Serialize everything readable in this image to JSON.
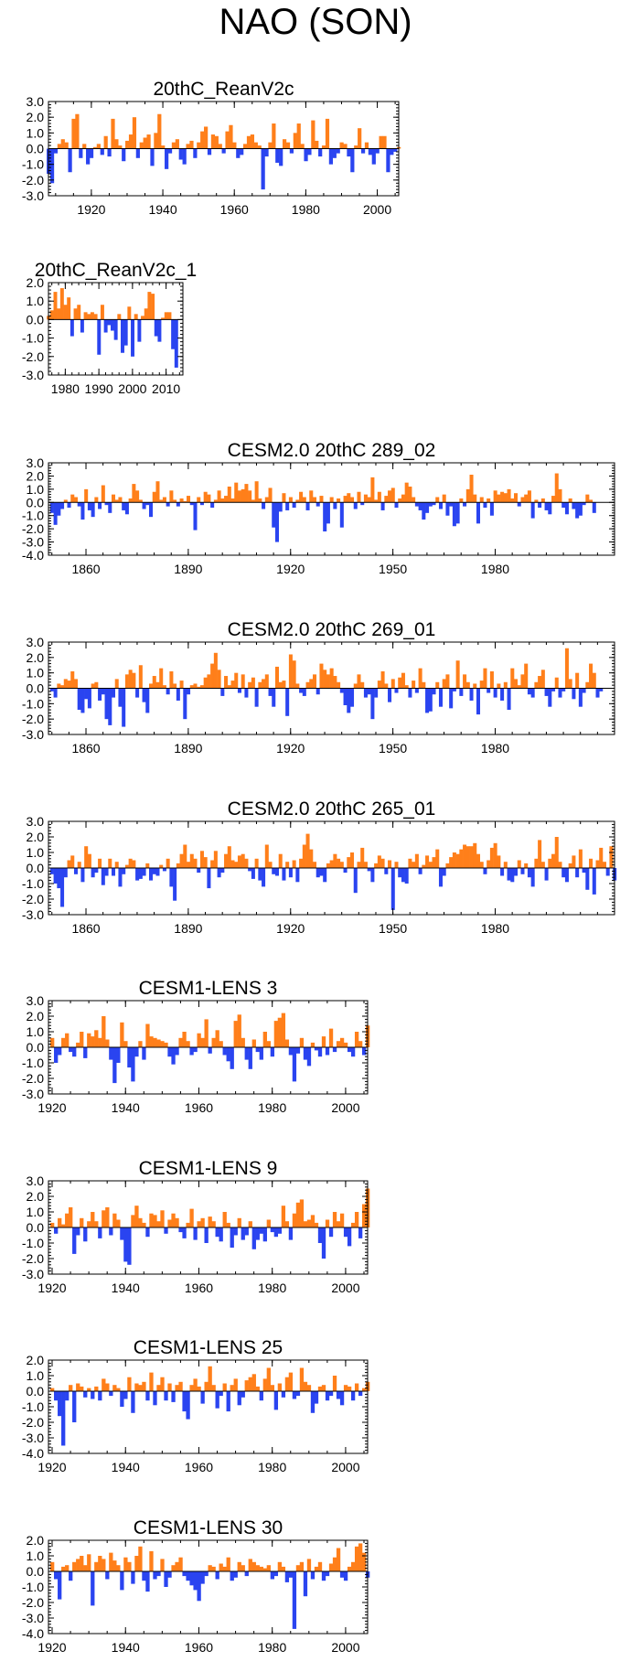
{
  "page_title": "NAO (SON)",
  "colors": {
    "positive": "#ff7f1a",
    "negative": "#2a44f0",
    "axis": "#000000"
  },
  "chart_data": [
    {
      "type": "area",
      "title": "20thC_ReanV2c",
      "xlim": [
        1908,
        2006
      ],
      "ylim": [
        -3,
        3
      ],
      "yticks": [
        3,
        2,
        1,
        0,
        -1,
        -2,
        -3
      ],
      "ytick_labels": [
        "3.0",
        "2.0",
        "1.0",
        "0.0",
        "-1.0",
        "-2.0",
        "-3.0"
      ],
      "xticks": [
        1920,
        1940,
        1960,
        1980,
        2000
      ],
      "xtick_labels": [
        "1920",
        "1940",
        "1960",
        "1980",
        "2000"
      ],
      "x_start": 1908,
      "x_step": 1,
      "values": [
        -1.6,
        -2.2,
        -0.3,
        0.3,
        0.6,
        0.4,
        -1.5,
        1.9,
        2.2,
        -0.6,
        0.3,
        -1.0,
        -0.6,
        0.1,
        0.3,
        -0.4,
        0.8,
        -0.5,
        1.9,
        0.6,
        0.2,
        -0.8,
        0.5,
        0.9,
        2.0,
        -0.6,
        0.4,
        0.7,
        0.9,
        -1.1,
        1.0,
        2.2,
        0.2,
        -1.3,
        -0.3,
        0.4,
        0.6,
        -0.7,
        -1.0,
        0.3,
        0.5,
        -0.6,
        0.4,
        1.1,
        1.4,
        -0.4,
        0.9,
        0.8,
        0.3,
        -0.3,
        1.1,
        1.5,
        0.4,
        -0.6,
        -0.4,
        0.3,
        0.8,
        0.9,
        0.4,
        0.2,
        -2.6,
        -0.5,
        0.4,
        1.6,
        -0.9,
        -1.1,
        0.6,
        0.4,
        -0.3,
        1.0,
        1.6,
        0.3,
        -0.8,
        -0.4,
        1.8,
        0.5,
        -0.5,
        0.2,
        1.9,
        -1.0,
        -0.6,
        -0.3,
        0.4,
        0.3,
        -0.5,
        -1.5,
        0.2,
        1.3,
        -0.3,
        0.4,
        -0.4,
        -1.0,
        -0.3,
        0.8,
        0.8,
        -1.5,
        -0.4,
        -0.2,
        0.1
      ]
    },
    {
      "type": "area",
      "title": "20thC_ReanV2c_1",
      "xlim": [
        1975,
        2015
      ],
      "ylim": [
        -3,
        2
      ],
      "yticks": [
        2,
        1,
        0,
        -1,
        -2,
        -3
      ],
      "ytick_labels": [
        "2.0",
        "1.0",
        "0.0",
        "-1.0",
        "-2.0",
        "-3.0"
      ],
      "xticks": [
        1980,
        1990,
        2000,
        2010
      ],
      "xtick_labels": [
        "1980",
        "1990",
        "2000",
        "2010"
      ],
      "x_start": 1975,
      "x_step": 1,
      "values": [
        0.2,
        0.5,
        1.5,
        0.6,
        1.7,
        0.8,
        1.2,
        -0.9,
        0.6,
        0.8,
        -0.7,
        0.4,
        0.3,
        0.4,
        0.3,
        -1.9,
        0.8,
        -0.7,
        -0.3,
        -0.6,
        -1.1,
        0.3,
        -1.8,
        -1.4,
        0.7,
        -2.0,
        0.3,
        -1.2,
        0.2,
        0.6,
        1.5,
        1.4,
        -0.9,
        -1.2,
        0.1,
        0.4,
        0.4,
        -1.6,
        -2.6
      ]
    },
    {
      "type": "area",
      "title": "CESM2.0 20thC 289_02",
      "xlim": [
        1849,
        2015
      ],
      "ylim": [
        -4,
        3
      ],
      "yticks": [
        3,
        2,
        1,
        0,
        -1,
        -2,
        -3,
        -4
      ],
      "ytick_labels": [
        "3.0",
        "2.0",
        "1.0",
        "0.0",
        "-1.0",
        "-2.0",
        "-3.0",
        "-4.0"
      ],
      "xticks": [
        1860,
        1890,
        1920,
        1950,
        1980
      ],
      "xtick_labels": [
        "1860",
        "1890",
        "1920",
        "1950",
        "1980"
      ],
      "x_start": 1850,
      "x_step": 1,
      "values": [
        -0.8,
        -1.7,
        -1.0,
        -0.5,
        0.2,
        -0.4,
        0.6,
        0.4,
        -0.3,
        -1.3,
        1.0,
        -0.6,
        -1.1,
        0.4,
        -0.5,
        1.3,
        -0.2,
        -0.8,
        0.6,
        0.2,
        0.4,
        -0.6,
        -0.9,
        0.3,
        1.4,
        0.9,
        0.2,
        -0.5,
        -0.2,
        -1.1,
        0.8,
        1.6,
        0.2,
        0.4,
        -0.3,
        0.9,
        0.2,
        -0.3,
        0.3,
        0.1,
        0.5,
        -0.2,
        -2.1,
        0.4,
        -0.2,
        0.8,
        0.6,
        -0.4,
        0.2,
        0.9,
        0.3,
        0.5,
        1.2,
        0.3,
        1.5,
        0.9,
        1.0,
        1.4,
        0.9,
        0.2,
        1.6,
        0.3,
        -0.5,
        0.4,
        1.1,
        -1.9,
        -3.0,
        -0.7,
        0.7,
        -0.6,
        0.4,
        -0.4,
        0.2,
        0.8,
        0.4,
        -0.6,
        0.9,
        0.4,
        -0.3,
        0.5,
        -2.2,
        -1.6,
        0.4,
        -0.5,
        0.3,
        -1.9,
        0.5,
        0.7,
        0.4,
        -0.5,
        0.8,
        -0.2,
        0.6,
        0.4,
        1.9,
        0.2,
        0.8,
        -0.6,
        0.5,
        0.9,
        1.1,
        -0.4,
        0.3,
        0.6,
        1.5,
        1.2,
        0.4,
        -0.3,
        -0.6,
        -1.3,
        -0.8,
        -0.3,
        -0.2,
        0.4,
        -0.5,
        0.6,
        -1.0,
        -0.3,
        -1.8,
        -1.6,
        0.3,
        -0.3,
        1.0,
        2.1,
        0.6,
        -1.6,
        0.4,
        -0.4,
        0.3,
        -1.0,
        0.9,
        0.6,
        0.8,
        0.7,
        1.0,
        0.3,
        0.7,
        -0.3,
        0.4,
        0.6,
        0.9,
        -1.2,
        0.2,
        -0.4,
        0.3,
        -0.6,
        -0.9,
        0.5,
        2.2,
        1.0,
        -0.4,
        -0.9,
        0.3,
        -0.5,
        -1.2,
        -1.0,
        -0.2,
        0.6,
        0.2,
        -0.8
      ]
    },
    {
      "type": "area",
      "title": "CESM2.0 20thC 269_01",
      "xlim": [
        1849,
        2015
      ],
      "ylim": [
        -3,
        3
      ],
      "yticks": [
        3,
        2,
        1,
        0,
        -1,
        -2,
        -3
      ],
      "ytick_labels": [
        "3.0",
        "2.0",
        "1.0",
        "0.0",
        "-1.0",
        "-2.0",
        "-3.0"
      ],
      "xticks": [
        1860,
        1890,
        1920,
        1950,
        1980
      ],
      "xtick_labels": [
        "1860",
        "1890",
        "1920",
        "1950",
        "1980"
      ],
      "x_start": 1850,
      "x_step": 1,
      "values": [
        -0.2,
        -0.6,
        0.3,
        0.2,
        0.6,
        0.5,
        1.1,
        0.6,
        -1.4,
        -1.6,
        -0.7,
        -1.3,
        0.3,
        0.4,
        -0.8,
        -0.4,
        -2.0,
        -2.4,
        -0.6,
        0.6,
        -1.2,
        -2.5,
        0.9,
        1.2,
        1.0,
        -0.6,
        1.5,
        -0.9,
        -1.6,
        0.3,
        0.8,
        0.4,
        1.3,
        0.2,
        -0.4,
        1.1,
        0.3,
        -0.8,
        0.5,
        -2.0,
        -0.4,
        0.2,
        0.3,
        0.1,
        0.2,
        0.7,
        0.9,
        1.6,
        2.3,
        1.2,
        -0.5,
        0.8,
        0.2,
        0.5,
        1.0,
        -0.3,
        0.9,
        -0.6,
        0.4,
        0.7,
        -1.2,
        0.4,
        0.6,
        0.9,
        -0.5,
        -1.2,
        1.4,
        0.4,
        0.5,
        -1.8,
        2.2,
        1.8,
        0.3,
        -0.3,
        -0.5,
        0.4,
        0.6,
        0.9,
        -0.4,
        1.6,
        1.2,
        0.9,
        1.3,
        0.8,
        0.4,
        -0.3,
        -1.1,
        -1.6,
        -1.2,
        0.3,
        0.9,
        0.4,
        -0.6,
        -0.4,
        -2.0,
        -0.6,
        0.5,
        1.1,
        0.3,
        -0.9,
        0.6,
        -0.3,
        0.7,
        1.0,
        0.2,
        -0.6,
        0.5,
        -0.3,
        1.3,
        0.4,
        -1.6,
        -1.5,
        -0.4,
        0.4,
        -1.2,
        0.6,
        0.9,
        -1.3,
        -0.2,
        1.8,
        -0.5,
        0.9,
        0.4,
        -0.8,
        0.3,
        -1.7,
        0.5,
        1.3,
        -0.3,
        1.1,
        -0.6,
        0.3,
        -0.8,
        0.4,
        -1.4,
        1.3,
        0.6,
        0.2,
        0.9,
        1.6,
        -0.4,
        -0.6,
        0.4,
        0.8,
        1.2,
        -0.5,
        -1.2,
        -0.2,
        0.7,
        -0.6,
        -0.2,
        2.6,
        0.6,
        -0.7,
        1.0,
        -1.2,
        -0.3,
        0.4,
        1.6,
        1.0,
        -0.6,
        -0.2
      ]
    },
    {
      "type": "area",
      "title": "CESM2.0 20thC 265_01",
      "xlim": [
        1849,
        2015
      ],
      "ylim": [
        -3,
        3
      ],
      "yticks": [
        3,
        2,
        1,
        0,
        -1,
        -2,
        -3
      ],
      "ytick_labels": [
        "3.0",
        "2.0",
        "1.0",
        "0.0",
        "-1.0",
        "-2.0",
        "-3.0"
      ],
      "xticks": [
        1860,
        1890,
        1920,
        1950,
        1980
      ],
      "xtick_labels": [
        "1860",
        "1890",
        "1920",
        "1950",
        "1980"
      ],
      "x_start": 1850,
      "x_step": 1,
      "values": [
        -0.4,
        -1.0,
        -1.3,
        -2.5,
        -0.6,
        0.5,
        0.8,
        -0.4,
        0.4,
        -0.9,
        1.4,
        0.9,
        -0.6,
        -0.3,
        0.6,
        -1.1,
        -0.5,
        0.6,
        -0.5,
        0.4,
        -1.2,
        -0.4,
        0.2,
        0.6,
        0.5,
        -0.8,
        -0.7,
        -0.5,
        0.3,
        -0.8,
        -0.4,
        -0.5,
        0.2,
        -0.2,
        0.6,
        -1.2,
        -2.1,
        0.3,
        0.9,
        1.5,
        0.4,
        0.9,
        0.6,
        -0.3,
        1.1,
        0.7,
        -1.3,
        0.5,
        1.1,
        -0.6,
        -0.3,
        0.9,
        1.4,
        0.5,
        0.4,
        0.8,
        0.9,
        0.6,
        -0.2,
        -0.7,
        0.6,
        -0.8,
        -1.2,
        1.5,
        0.4,
        -0.4,
        -0.5,
        0.9,
        -0.8,
        0.4,
        -0.6,
        0.5,
        -0.9,
        0.6,
        1.5,
        2.2,
        1.2,
        0.4,
        -0.6,
        -0.5,
        -0.9,
        0.3,
        0.5,
        0.9,
        0.6,
        0.4,
        -0.3,
        0.7,
        1.0,
        -1.6,
        0.4,
        1.3,
        0.4,
        -0.2,
        -0.9,
        0.3,
        0.8,
        0.6,
        -0.4,
        0.5,
        -2.7,
        0.4,
        -0.6,
        -0.9,
        -1.0,
        0.6,
        0.4,
        0.9,
        -0.4,
        0.2,
        0.8,
        0.4,
        0.7,
        1.2,
        -1.2,
        -0.5,
        0.3,
        0.7,
        1.0,
        0.9,
        1.2,
        1.5,
        1.4,
        1.4,
        1.6,
        0.9,
        0.4,
        -0.4,
        0.5,
        1.3,
        1.6,
        0.8,
        -0.5,
        0.4,
        -0.8,
        -0.9,
        -0.5,
        0.5,
        -0.4,
        0.3,
        -0.6,
        -1.2,
        0.6,
        1.8,
        0.4,
        -0.8,
        0.6,
        0.9,
        2.0,
        0.4,
        -0.6,
        -0.9,
        0.3,
        0.8,
        -0.6,
        1.2,
        -0.3,
        -1.4,
        0.6,
        -1.7,
        0.5,
        1.3,
        0.4,
        -0.5,
        1.4,
        -0.8
      ]
    },
    {
      "type": "area",
      "title": "CESM1-LENS 3",
      "xlim": [
        1919,
        2006
      ],
      "ylim": [
        -3,
        3
      ],
      "yticks": [
        3,
        2,
        1,
        0,
        -1,
        -2,
        -3
      ],
      "ytick_labels": [
        "3.0",
        "2.0",
        "1.0",
        "0.0",
        "-1.0",
        "-2.0",
        "-3.0"
      ],
      "xticks": [
        1920,
        1940,
        1960,
        1980,
        2000
      ],
      "xtick_labels": [
        "1920",
        "1940",
        "1960",
        "1980",
        "2000"
      ],
      "x_start": 1920,
      "x_step": 1,
      "values": [
        0.6,
        -1.0,
        -0.5,
        0.6,
        0.9,
        -0.3,
        -0.6,
        0.3,
        1.0,
        -0.7,
        0.9,
        0.7,
        1.1,
        0.6,
        2.0,
        0.5,
        -0.8,
        -2.3,
        -1.0,
        1.6,
        0.4,
        -1.3,
        -2.2,
        -0.6,
        0.4,
        -0.8,
        1.5,
        0.7,
        0.6,
        0.5,
        0.4,
        0.3,
        -0.6,
        -1.1,
        -0.5,
        0.6,
        1.0,
        0.4,
        -0.5,
        -0.3,
        0.9,
        0.6,
        1.8,
        -0.4,
        0.6,
        1.1,
        0.4,
        -0.5,
        -0.9,
        -1.4,
        1.7,
        2.1,
        0.6,
        -0.8,
        -1.4,
        0.5,
        -0.3,
        -0.8,
        1.0,
        0.4,
        -0.6,
        1.7,
        1.9,
        2.2,
        0.5,
        -0.5,
        -2.2,
        -0.4,
        0.6,
        -0.8,
        -1.2,
        0.3,
        -0.2,
        -0.6,
        0.7,
        -0.5,
        1.2,
        -0.3,
        0.4,
        0.6,
        0.3,
        -0.3,
        -0.6,
        1.0,
        0.4,
        -0.5,
        1.4
      ]
    },
    {
      "type": "area",
      "title": "CESM1-LENS 9",
      "xlim": [
        1919,
        2006
      ],
      "ylim": [
        -3,
        3
      ],
      "yticks": [
        3,
        2,
        1,
        0,
        -1,
        -2,
        -3
      ],
      "ytick_labels": [
        "3.0",
        "2.0",
        "1.0",
        "0.0",
        "-1.0",
        "-2.0",
        "-3.0"
      ],
      "xticks": [
        1920,
        1940,
        1960,
        1980,
        2000
      ],
      "xtick_labels": [
        "1920",
        "1940",
        "1960",
        "1980",
        "2000"
      ],
      "x_start": 1920,
      "x_step": 1,
      "values": [
        0.3,
        -0.4,
        0.6,
        0.2,
        0.9,
        1.3,
        -1.7,
        -0.5,
        0.6,
        -0.9,
        0.4,
        1.0,
        0.4,
        -0.7,
        1.1,
        1.3,
        -0.5,
        0.9,
        0.5,
        -0.8,
        -2.2,
        -2.4,
        0.8,
        1.4,
        0.6,
        0.3,
        -0.6,
        0.9,
        0.8,
        0.4,
        1.1,
        -0.4,
        0.5,
        0.9,
        0.6,
        -0.3,
        -0.7,
        0.3,
        1.2,
        -0.8,
        0.4,
        0.6,
        -1.0,
        0.7,
        0.4,
        -0.6,
        -0.9,
        1.0,
        0.3,
        -1.3,
        -0.5,
        0.6,
        -0.8,
        -0.5,
        0.4,
        -1.4,
        -0.8,
        -0.4,
        -0.9,
        0.5,
        -0.3,
        -0.6,
        -0.4,
        1.4,
        0.4,
        -0.8,
        0.9,
        1.6,
        1.8,
        0.4,
        0.5,
        0.8,
        0.3,
        -1.0,
        -2.0,
        0.5,
        -0.6,
        1.0,
        0.4,
        0.9,
        -0.6,
        -1.2,
        0.3,
        1.0,
        -0.7,
        1.5,
        2.5
      ]
    },
    {
      "type": "area",
      "title": "CESM1-LENS 25",
      "xlim": [
        1919,
        2006
      ],
      "ylim": [
        -4,
        2
      ],
      "yticks": [
        2,
        1,
        0,
        -1,
        -2,
        -3,
        -4
      ],
      "ytick_labels": [
        "2.0",
        "1.0",
        "0.0",
        "-1.0",
        "-2.0",
        "-3.0",
        "-4.0"
      ],
      "xticks": [
        1920,
        1940,
        1960,
        1980,
        2000
      ],
      "xtick_labels": [
        "1920",
        "1940",
        "1960",
        "1980",
        "2000"
      ],
      "x_start": 1920,
      "x_step": 1,
      "values": [
        0.2,
        -0.6,
        -1.6,
        -3.5,
        -0.6,
        0.4,
        -2.0,
        0.5,
        0.3,
        -0.4,
        0.2,
        -0.5,
        0.3,
        -0.6,
        0.8,
        0.5,
        -0.3,
        0.4,
        0.2,
        -1.0,
        -0.5,
        0.9,
        -1.4,
        0.5,
        0.4,
        0.6,
        -0.6,
        1.2,
        -0.9,
        0.4,
        0.9,
        -0.6,
        0.5,
        -0.7,
        0.4,
        0.6,
        -1.3,
        -1.8,
        0.4,
        0.8,
        0.3,
        -0.8,
        0.6,
        1.6,
        0.4,
        -1.1,
        -0.3,
        0.5,
        -1.3,
        0.4,
        0.8,
        -0.9,
        -0.4,
        0.7,
        0.9,
        1.1,
        0.3,
        -0.6,
        0.8,
        1.5,
        0.4,
        -1.2,
        0.5,
        -0.4,
        0.9,
        1.2,
        -0.5,
        -0.3,
        1.5,
        0.6,
        0.4,
        -1.4,
        -0.8,
        0.3,
        0.4,
        -0.6,
        -0.3,
        1.0,
        -0.5,
        -0.9,
        0.4,
        0.3,
        -0.6,
        0.5,
        -0.3,
        0.2,
        0.6
      ]
    },
    {
      "type": "area",
      "title": "CESM1-LENS 30",
      "xlim": [
        1919,
        2006
      ],
      "ylim": [
        -4,
        2
      ],
      "yticks": [
        2,
        1,
        0,
        -1,
        -2,
        -3,
        -4
      ],
      "ytick_labels": [
        "2.0",
        "1.0",
        "0.0",
        "-1.0",
        "-2.0",
        "-3.0",
        "-4.0"
      ],
      "xticks": [
        1920,
        1940,
        1960,
        1980,
        2000
      ],
      "xtick_labels": [
        "1920",
        "1940",
        "1960",
        "1980",
        "2000"
      ],
      "x_start": 1920,
      "x_step": 1,
      "values": [
        0.6,
        -0.5,
        -1.8,
        0.3,
        0.4,
        -0.6,
        0.6,
        0.8,
        1.0,
        0.4,
        1.1,
        -2.2,
        0.6,
        1.0,
        0.8,
        -0.5,
        1.2,
        0.7,
        0.4,
        -1.2,
        0.9,
        0.6,
        -0.8,
        1.0,
        1.6,
        -0.6,
        -1.3,
        1.3,
        -0.5,
        -0.3,
        0.8,
        -1.0,
        -0.4,
        0.4,
        0.6,
        0.9,
        -0.3,
        -0.6,
        -0.9,
        -1.2,
        -1.9,
        -0.8,
        -0.3,
        0.4,
        0.3,
        -0.5,
        0.5,
        0.3,
        0.9,
        -0.6,
        -0.4,
        0.6,
        0.4,
        -0.3,
        0.8,
        0.6,
        0.4,
        0.3,
        0.2,
        0.4,
        -0.5,
        -0.3,
        0.6,
        0.3,
        -0.7,
        -0.4,
        -3.7,
        0.4,
        0.6,
        -1.6,
        0.8,
        -0.5,
        0.3,
        0.6,
        -0.6,
        -0.3,
        0.5,
        0.9,
        1.5,
        -0.4,
        -0.6,
        0.3,
        0.6,
        1.6,
        1.8,
        1.2,
        -0.4
      ]
    }
  ]
}
